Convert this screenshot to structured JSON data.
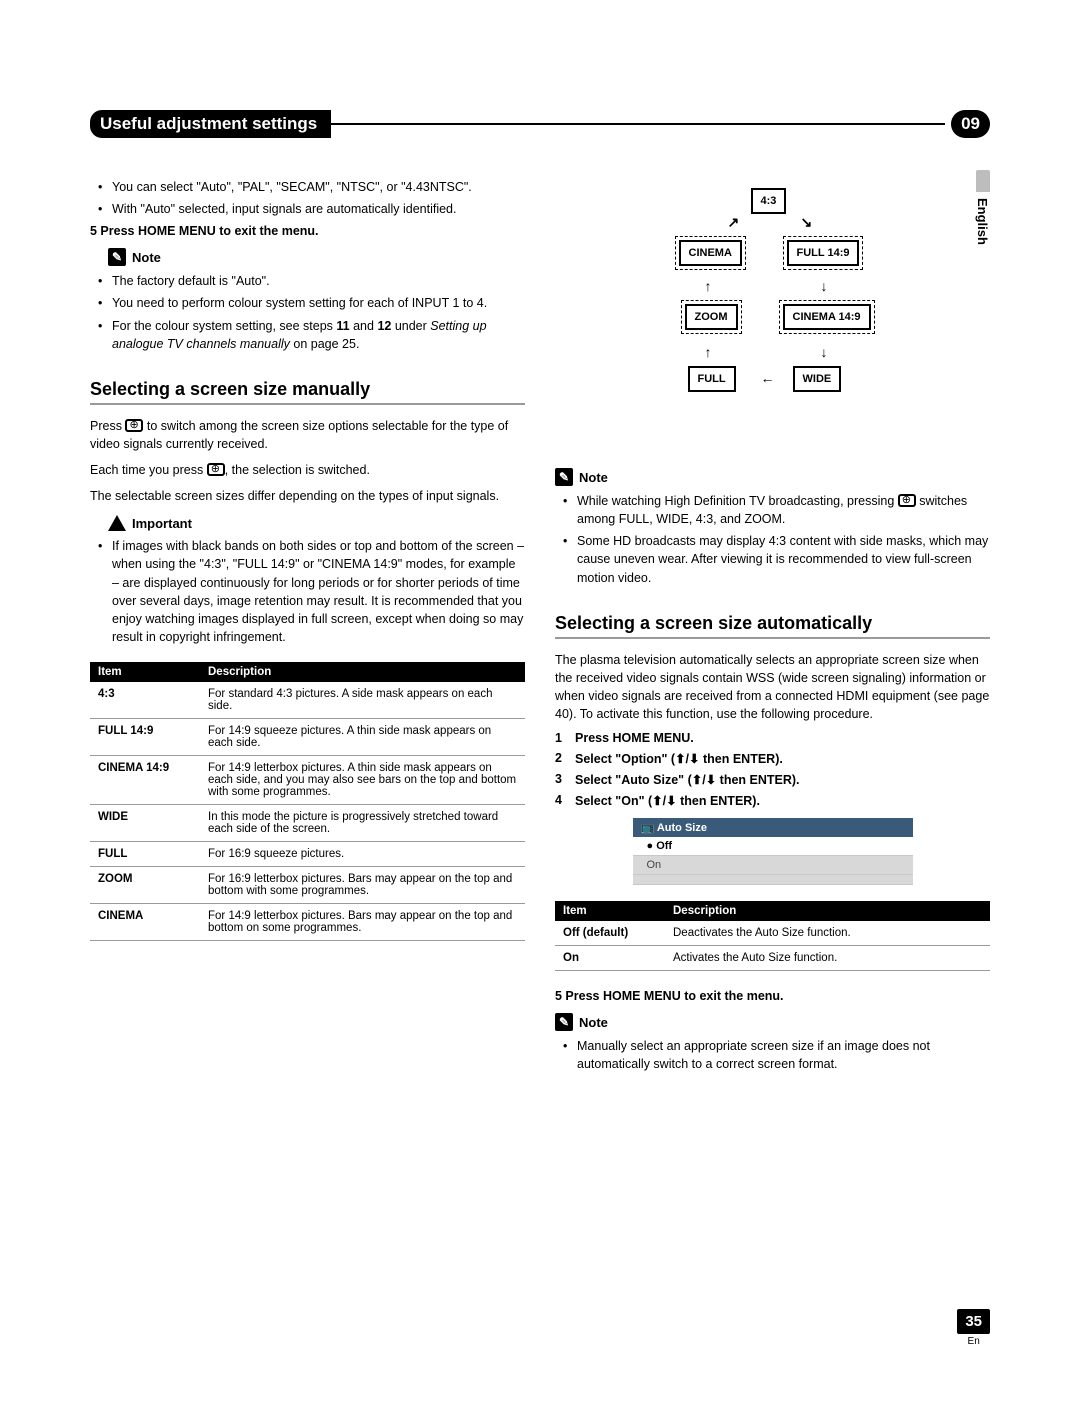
{
  "chapter": {
    "title": "Useful adjustment settings",
    "number": "09"
  },
  "side_tab": "English",
  "page_number": "35",
  "page_lang": "En",
  "left": {
    "intro_bullets": [
      "You can select \"Auto\", \"PAL\", \"SECAM\", \"NTSC\", or \"4.43NTSC\".",
      "With \"Auto\" selected, input signals are automatically identified."
    ],
    "step5": "5    Press HOME MENU to exit the menu.",
    "note_label": "Note",
    "note_bullets": [
      "The factory default is \"Auto\".",
      "You need to perform colour system setting for each of INPUT 1 to 4.",
      "For the colour system setting, see steps 11 and 12 under Setting up analogue TV channels manually on page 25."
    ],
    "h2": "Selecting a screen size manually",
    "p1_a": "Press ",
    "p1_b": " to switch among the screen size options selectable for the type of video signals currently received.",
    "p2_a": "Each time you press ",
    "p2_b": ", the selection is switched.",
    "p3": "The selectable screen sizes differ depending on the types of input signals.",
    "important_label": "Important",
    "important_bullet": "If images with black bands on both sides or top and bottom of the screen – when using the \"4:3\", \"FULL 14:9\" or \"CINEMA 14:9\" modes, for example – are displayed continuously for long periods or for shorter periods of time over several days, image retention may result. It is recommended that you enjoy watching images displayed in full screen, except when doing so may result in copyright infringement.",
    "table": {
      "headers": [
        "Item",
        "Description"
      ],
      "rows": [
        [
          "4:3",
          "For standard 4:3 pictures. A side mask appears on each side."
        ],
        [
          "FULL 14:9",
          "For 14:9 squeeze pictures. A thin side mask appears on each side."
        ],
        [
          "CINEMA 14:9",
          "For 14:9 letterbox pictures. A thin side mask appears on each side, and you may also see bars on the top and bottom with some programmes."
        ],
        [
          "WIDE",
          "In this mode the picture is progressively stretched toward each side of the screen."
        ],
        [
          "FULL",
          "For 16:9 squeeze pictures."
        ],
        [
          "ZOOM",
          "For 16:9 letterbox pictures. Bars may appear on the top and bottom with some programmes."
        ],
        [
          "CINEMA",
          "For 14:9 letterbox pictures. Bars may appear on the top and bottom on some programmes."
        ]
      ]
    }
  },
  "right": {
    "diagram": {
      "top": "4:3",
      "cinema": "CINEMA",
      "full149": "FULL 14:9",
      "zoom": "ZOOM",
      "cinema149": "CINEMA 14:9",
      "full": "FULL",
      "wide": "WIDE"
    },
    "note_label": "Note",
    "note_bullets_a": "While watching High Definition TV broadcasting, pressing ",
    "note_bullets_b": " switches among FULL, WIDE, 4:3, and ZOOM.",
    "note_bullets2": "Some HD broadcasts may display 4:3 content with side masks, which may cause uneven wear. After viewing it is recommended to view full-screen motion video.",
    "h2": "Selecting a screen size automatically",
    "intro": "The plasma television automatically selects an appropriate screen size when the received video signals contain WSS (wide screen signaling) information or when video signals are received from a connected HDMI equipment (see page 40). To activate this function, use the following procedure.",
    "steps": [
      "Press HOME MENU.",
      "Select \"Option\" (↑/↓ then ENTER).",
      "Select \"Auto Size\" (↑/↓ then ENTER).",
      "Select \"On\" (↑/↓ then ENTER)."
    ],
    "menu": {
      "title": "Auto Size",
      "rows": [
        "Off",
        "On"
      ],
      "selected_index": 0
    },
    "table": {
      "headers": [
        "Item",
        "Description"
      ],
      "rows": [
        [
          "Off (default)",
          "Deactivates the Auto Size function."
        ],
        [
          "On",
          "Activates the Auto Size function."
        ]
      ]
    },
    "step5": "5    Press HOME MENU to exit the menu.",
    "note2_bullet": "Manually select an appropriate screen size if an image does not automatically switch to a correct screen format."
  }
}
